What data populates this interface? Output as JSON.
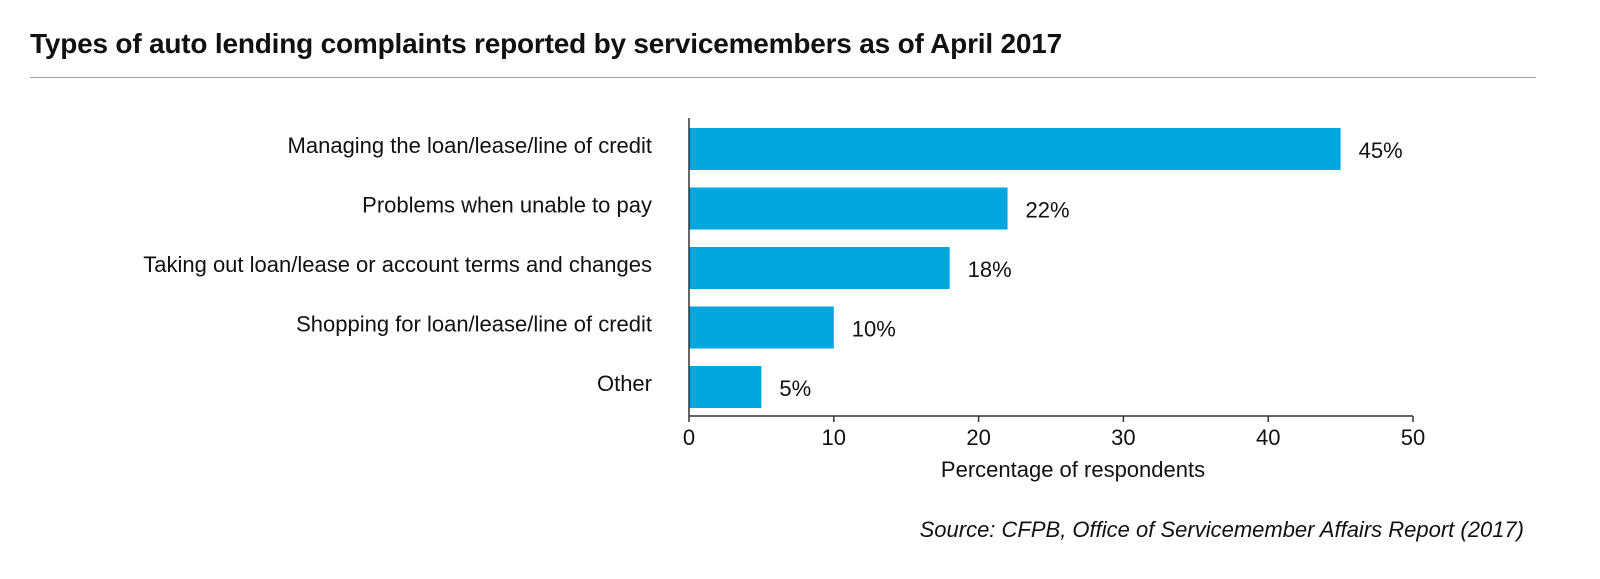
{
  "chart_data": {
    "type": "bar",
    "orientation": "horizontal",
    "title": "Types of auto lending complaints reported by servicemembers as of April 2017",
    "categories": [
      "Managing the loan/lease/line of credit",
      "Problems when unable to pay",
      "Taking out loan/lease or account terms and changes",
      "Shopping for loan/lease/line of credit",
      "Other"
    ],
    "values": [
      45,
      22,
      18,
      10,
      5
    ],
    "value_labels": [
      "45%",
      "22%",
      "18%",
      "10%",
      "5%"
    ],
    "xlabel": "Percentage of respondents",
    "ylabel": "",
    "xlim": [
      0,
      50
    ],
    "xticks": [
      0,
      10,
      20,
      30,
      40,
      50
    ],
    "xtick_labels": [
      "0",
      "10",
      "20",
      "30",
      "40",
      "50"
    ],
    "bar_color": "#00a6de",
    "grid": false,
    "source": "Source: CFPB, Office of Servicemember Affairs Report (2017)"
  }
}
